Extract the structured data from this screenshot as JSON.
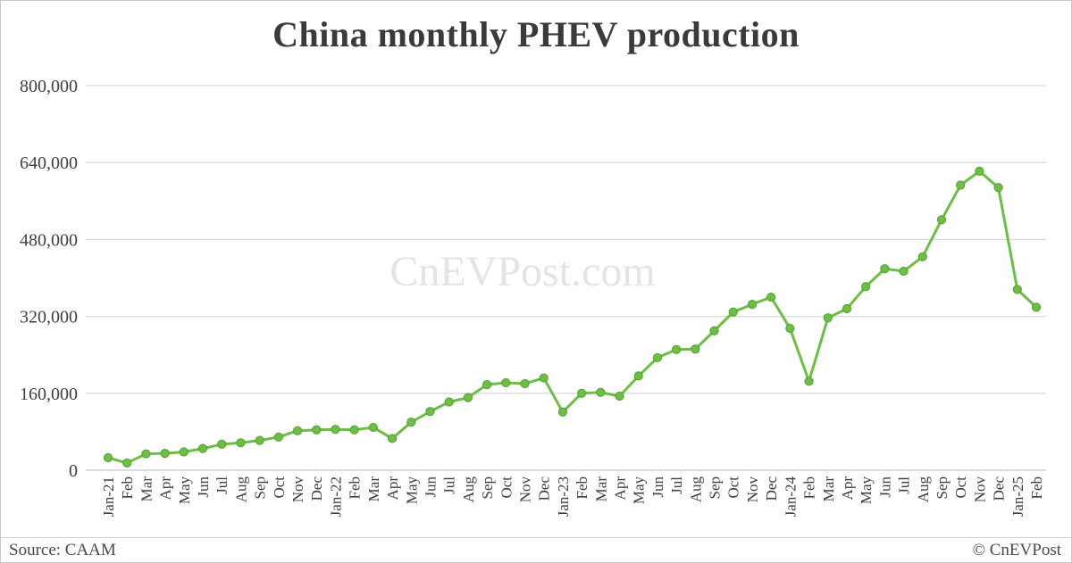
{
  "title": "China monthly PHEV production",
  "watermark": "CnEVPost.com",
  "footer": {
    "source": "Source: CAAM",
    "copyright": "© CnEVPost"
  },
  "colors": {
    "line": "#6cbe45",
    "marker_fill": "#6cbe45",
    "marker_border": "#569f35",
    "grid": "#d9d9d9",
    "zero_line": "#c6c6c6",
    "axis_text": "#3f3f3f",
    "title_text": "#3a3a3a",
    "watermark_text": "#e4e4e4",
    "footer_text": "#4a4a4a"
  },
  "chart_data": {
    "type": "line",
    "title": "China monthly PHEV production",
    "xlabel": "",
    "ylabel": "",
    "ylim": [
      0,
      800000
    ],
    "yticks": [
      0,
      160000,
      320000,
      480000,
      640000,
      800000
    ],
    "grid": true,
    "legend": false,
    "x": [
      "Jan-21",
      "Feb",
      "Mar",
      "Apr",
      "May",
      "Jun",
      "Jul",
      "Aug",
      "Sep",
      "Oct",
      "Nov",
      "Dec",
      "Jan-22",
      "Feb",
      "Mar",
      "Apr",
      "May",
      "Jun",
      "Jul",
      "Aug",
      "Sep",
      "Oct",
      "Nov",
      "Dec",
      "Jan-23",
      "Feb",
      "Mar",
      "Apr",
      "May",
      "Jun",
      "Jul",
      "Aug",
      "Sep",
      "Oct",
      "Nov",
      "Dec",
      "Jan-24",
      "Feb",
      "Mar",
      "Apr",
      "May",
      "Jun",
      "Jul",
      "Aug",
      "Sep",
      "Oct",
      "Nov",
      "Dec",
      "Jan-25",
      "Feb"
    ],
    "series": [
      {
        "name": "China monthly PHEV production",
        "values": [
          26000,
          15000,
          34000,
          35000,
          38000,
          45000,
          54000,
          57000,
          62000,
          69000,
          82000,
          84000,
          85000,
          84000,
          89000,
          66000,
          100000,
          122000,
          142000,
          151000,
          178000,
          182000,
          180000,
          192000,
          121000,
          160000,
          162000,
          154000,
          196000,
          234000,
          251000,
          252000,
          290000,
          329000,
          345000,
          360000,
          295000,
          185000,
          317000,
          336000,
          382000,
          419000,
          414000,
          444000,
          521000,
          593000,
          622000,
          588000,
          376000,
          339000
        ]
      }
    ]
  }
}
